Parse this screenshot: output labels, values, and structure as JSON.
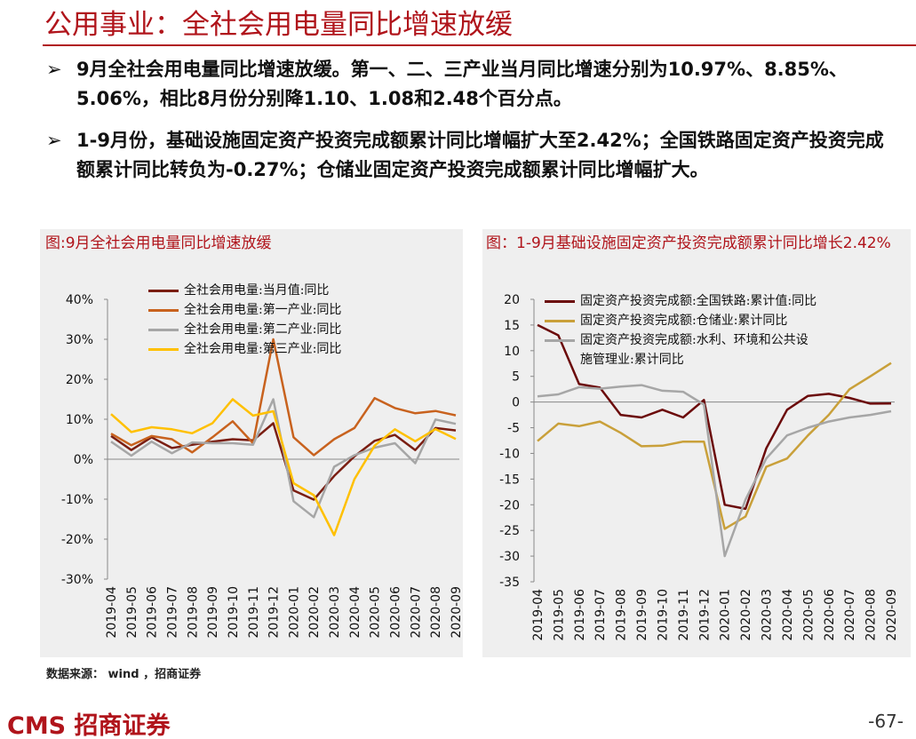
{
  "header": {
    "title": "公用事业：全社会用电量同比增速放缓"
  },
  "bullets": [
    "9月全社会用电量同比增速放缓。第一、二、三产业当月同比增速分别为10.97%、8.85%、5.06%，相比8月份分别降1.10、1.08和2.48个百分点。",
    "1-9月份，基础设施固定资产投资完成额累计同比增幅扩大至2.42%；全国铁路固定资产投资完成额累计同比转负为-0.27%；仓储业固定资产投资完成额累计同比增幅扩大。"
  ],
  "footer": {
    "source": "数据来源： wind ，招商证券",
    "logo": "CMS 招商证券",
    "page": "-67-"
  },
  "chart_data": [
    {
      "type": "line",
      "title": "图:9月全社会用电量同比增速放缓",
      "categories": [
        "2019-04",
        "2019-05",
        "2019-06",
        "2019-07",
        "2019-08",
        "2019-09",
        "2019-10",
        "2019-11",
        "2019-12",
        "2020-01",
        "2020-02",
        "2020-03",
        "2020-04",
        "2020-05",
        "2020-06",
        "2020-07",
        "2020-08",
        "2020-09"
      ],
      "ylim": [
        -30,
        40
      ],
      "yticks": [
        {
          "value": -30,
          "label": "-30%"
        },
        {
          "value": -20,
          "label": "-20%"
        },
        {
          "value": -10,
          "label": "-10%"
        },
        {
          "value": 0,
          "label": "0%"
        },
        {
          "value": 10,
          "label": "10%"
        },
        {
          "value": 20,
          "label": "20%"
        },
        {
          "value": 30,
          "label": "30%"
        },
        {
          "value": 40,
          "label": "40%"
        }
      ],
      "series": [
        {
          "name": "全社会用电量:当月值:同比",
          "color": "#7A1E12",
          "values": [
            5.8,
            2.3,
            5.5,
            2.8,
            3.6,
            4.4,
            5.0,
            4.7,
            9.0,
            -7.8,
            -10.1,
            -4.2,
            0.7,
            4.6,
            6.1,
            2.3,
            7.8,
            7.2
          ]
        },
        {
          "name": "全社会用电量:第一产业:同比",
          "color": "#C8621E",
          "values": [
            6.4,
            3.5,
            5.8,
            5.0,
            1.7,
            5.5,
            9.5,
            4.0,
            30.0,
            5.5,
            1.0,
            5.0,
            7.8,
            15.3,
            12.8,
            11.5,
            12.07,
            10.97
          ]
        },
        {
          "name": "全社会用电量:第二产业:同比",
          "color": "#A6A6A6",
          "values": [
            4.4,
            0.9,
            4.4,
            1.5,
            4.2,
            4.0,
            4.0,
            3.6,
            15.0,
            -10.5,
            -14.5,
            -1.9,
            1.0,
            2.9,
            4.0,
            -1.0,
            9.93,
            8.85
          ]
        },
        {
          "name": "全社会用电量:第三产业:同比",
          "color": "#FFC000",
          "values": [
            11.3,
            6.8,
            8.0,
            7.5,
            6.5,
            9.0,
            15.0,
            10.9,
            12.0,
            -6.0,
            -9.0,
            -19.0,
            -5.0,
            3.4,
            7.5,
            4.5,
            7.54,
            5.06
          ]
        }
      ]
    },
    {
      "type": "line",
      "title": "图：1-9月基础设施固定资产投资完成额累计同比增长2.42%",
      "categories": [
        "2019-04",
        "2019-05",
        "2019-06",
        "2019-07",
        "2019-08",
        "2019-09",
        "2019-10",
        "2019-11",
        "2019-12",
        "2020-01",
        "2020-02",
        "2020-03",
        "2020-04",
        "2020-05",
        "2020-06",
        "2020-07",
        "2020-08",
        "2020-09"
      ],
      "ylim": [
        -35,
        20
      ],
      "yticks": [
        -35,
        -30,
        -25,
        -20,
        -15,
        -10,
        -5,
        0,
        5,
        10,
        15,
        20
      ],
      "series": [
        {
          "name": "固定资产投资完成额:全国铁路:累计值:同比",
          "color": "#6B0A0A",
          "values": [
            15.0,
            13.0,
            3.5,
            2.8,
            -2.5,
            -3.0,
            -1.5,
            -3.0,
            0.4,
            -20.0,
            -20.8,
            -9.0,
            -1.5,
            1.2,
            1.6,
            0.8,
            -0.3,
            -0.27
          ]
        },
        {
          "name": "固定资产投资完成额:仓储业:累计同比",
          "color": "#C9A03A",
          "values": [
            -7.6,
            -4.2,
            -4.7,
            -3.8,
            -6.0,
            -8.6,
            -8.5,
            -7.7,
            -7.7,
            -24.7,
            -22.3,
            -12.6,
            -11.0,
            -6.5,
            -2.5,
            2.5,
            5.0,
            7.6
          ]
        },
        {
          "name": "固定资产投资完成额:水利、环境和公共设施管理业:累计同比",
          "color": "#A6A6A6",
          "values": [
            1.1,
            1.5,
            2.9,
            2.6,
            3.0,
            3.3,
            2.2,
            2.0,
            -0.5,
            -30.0,
            -19.0,
            -11.0,
            -6.5,
            -5.0,
            -3.8,
            -3.0,
            -2.5,
            -1.8
          ]
        }
      ]
    }
  ]
}
